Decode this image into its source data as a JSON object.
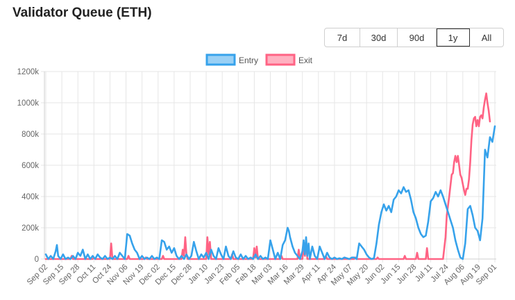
{
  "title": "Validator Queue (ETH)",
  "range_buttons": [
    {
      "label": "7d",
      "active": false
    },
    {
      "label": "30d",
      "active": false
    },
    {
      "label": "90d",
      "active": false
    },
    {
      "label": "1y",
      "active": true
    },
    {
      "label": "All",
      "active": false
    }
  ],
  "chart_data": {
    "type": "line",
    "title": "",
    "xlabel": "",
    "ylabel": "",
    "ylim": [
      0,
      1200000
    ],
    "y_ticks": [
      0,
      200000,
      400000,
      600000,
      800000,
      1000000,
      1200000
    ],
    "y_tick_labels": [
      "0",
      "200k",
      "400k",
      "600k",
      "800k",
      "1000k",
      "1200k"
    ],
    "x_tick_labels": [
      "Sep 02",
      "Sep 15",
      "Sep 28",
      "Oct 11",
      "Oct 24",
      "Nov 06",
      "Nov 19",
      "Dec 02",
      "Dec 15",
      "Dec 28",
      "Jan 10",
      "Jan 23",
      "Feb 05",
      "Feb 18",
      "Mar 03",
      "Mar 16",
      "Mar 29",
      "Apr 11",
      "Apr 24",
      "May 07",
      "May 20",
      "Jun 02",
      "Jun 15",
      "Jun 28",
      "Jul 11",
      "Jul 24",
      "Aug 06",
      "Aug 19",
      "Sep 01"
    ],
    "grid": true,
    "legend": "top-center",
    "series": [
      {
        "name": "Entry",
        "color": "#36a2eb",
        "fill": "#9ad0f5",
        "points": [
          [
            0,
            30000
          ],
          [
            2,
            0
          ],
          [
            4,
            20000
          ],
          [
            6,
            0
          ],
          [
            8,
            50000
          ],
          [
            9,
            90000
          ],
          [
            10,
            20000
          ],
          [
            12,
            0
          ],
          [
            14,
            30000
          ],
          [
            16,
            0
          ],
          [
            18,
            10000
          ],
          [
            20,
            0
          ],
          [
            22,
            20000
          ],
          [
            24,
            0
          ],
          [
            26,
            40000
          ],
          [
            28,
            20000
          ],
          [
            30,
            60000
          ],
          [
            32,
            0
          ],
          [
            34,
            30000
          ],
          [
            36,
            0
          ],
          [
            38,
            20000
          ],
          [
            40,
            0
          ],
          [
            42,
            30000
          ],
          [
            44,
            10000
          ],
          [
            46,
            0
          ],
          [
            48,
            20000
          ],
          [
            50,
            0
          ],
          [
            52,
            10000
          ],
          [
            54,
            0
          ],
          [
            56,
            20000
          ],
          [
            58,
            0
          ],
          [
            60,
            40000
          ],
          [
            62,
            20000
          ],
          [
            64,
            0
          ],
          [
            66,
            160000
          ],
          [
            68,
            150000
          ],
          [
            70,
            100000
          ],
          [
            72,
            60000
          ],
          [
            74,
            40000
          ],
          [
            76,
            0
          ],
          [
            78,
            20000
          ],
          [
            80,
            0
          ],
          [
            82,
            10000
          ],
          [
            84,
            0
          ],
          [
            86,
            20000
          ],
          [
            88,
            0
          ],
          [
            90,
            10000
          ],
          [
            92,
            0
          ],
          [
            94,
            120000
          ],
          [
            96,
            110000
          ],
          [
            98,
            60000
          ],
          [
            100,
            80000
          ],
          [
            102,
            40000
          ],
          [
            104,
            70000
          ],
          [
            106,
            20000
          ],
          [
            108,
            0
          ],
          [
            110,
            20000
          ],
          [
            112,
            0
          ],
          [
            114,
            30000
          ],
          [
            116,
            0
          ],
          [
            118,
            20000
          ],
          [
            120,
            110000
          ],
          [
            122,
            50000
          ],
          [
            124,
            0
          ],
          [
            126,
            30000
          ],
          [
            128,
            10000
          ],
          [
            130,
            40000
          ],
          [
            132,
            0
          ],
          [
            134,
            60000
          ],
          [
            136,
            20000
          ],
          [
            138,
            0
          ],
          [
            140,
            70000
          ],
          [
            142,
            30000
          ],
          [
            144,
            0
          ],
          [
            146,
            80000
          ],
          [
            148,
            20000
          ],
          [
            150,
            0
          ],
          [
            152,
            50000
          ],
          [
            154,
            10000
          ],
          [
            156,
            0
          ],
          [
            158,
            30000
          ],
          [
            160,
            0
          ],
          [
            162,
            20000
          ],
          [
            164,
            0
          ],
          [
            166,
            10000
          ],
          [
            168,
            0
          ],
          [
            170,
            30000
          ],
          [
            172,
            0
          ],
          [
            174,
            20000
          ],
          [
            176,
            0
          ],
          [
            178,
            10000
          ],
          [
            180,
            0
          ],
          [
            182,
            120000
          ],
          [
            184,
            60000
          ],
          [
            186,
            0
          ],
          [
            188,
            40000
          ],
          [
            190,
            0
          ],
          [
            192,
            90000
          ],
          [
            194,
            120000
          ],
          [
            196,
            200000
          ],
          [
            197,
            180000
          ],
          [
            198,
            140000
          ],
          [
            200,
            80000
          ],
          [
            202,
            40000
          ],
          [
            204,
            20000
          ],
          [
            206,
            0
          ],
          [
            208,
            50000
          ],
          [
            209,
            120000
          ],
          [
            210,
            30000
          ],
          [
            211,
            140000
          ],
          [
            212,
            20000
          ],
          [
            213,
            100000
          ],
          [
            214,
            0
          ],
          [
            216,
            80000
          ],
          [
            218,
            20000
          ],
          [
            220,
            0
          ],
          [
            222,
            80000
          ],
          [
            224,
            40000
          ],
          [
            226,
            0
          ],
          [
            228,
            40000
          ],
          [
            230,
            10000
          ],
          [
            232,
            0
          ],
          [
            234,
            10000
          ],
          [
            236,
            0
          ],
          [
            238,
            5000
          ],
          [
            240,
            0
          ],
          [
            242,
            10000
          ],
          [
            244,
            5000
          ],
          [
            246,
            0
          ],
          [
            248,
            10000
          ],
          [
            250,
            10000
          ],
          [
            252,
            0
          ],
          [
            254,
            100000
          ],
          [
            256,
            80000
          ],
          [
            258,
            60000
          ],
          [
            260,
            30000
          ],
          [
            262,
            10000
          ],
          [
            264,
            0
          ],
          [
            266,
            5000
          ],
          [
            268,
            100000
          ],
          [
            270,
            220000
          ],
          [
            272,
            300000
          ],
          [
            274,
            350000
          ],
          [
            276,
            310000
          ],
          [
            278,
            340000
          ],
          [
            280,
            300000
          ],
          [
            282,
            380000
          ],
          [
            284,
            400000
          ],
          [
            286,
            440000
          ],
          [
            288,
            420000
          ],
          [
            290,
            460000
          ],
          [
            292,
            430000
          ],
          [
            294,
            440000
          ],
          [
            296,
            380000
          ],
          [
            298,
            300000
          ],
          [
            300,
            260000
          ],
          [
            302,
            200000
          ],
          [
            304,
            160000
          ],
          [
            306,
            140000
          ],
          [
            308,
            150000
          ],
          [
            310,
            240000
          ],
          [
            312,
            370000
          ],
          [
            314,
            390000
          ],
          [
            316,
            430000
          ],
          [
            318,
            400000
          ],
          [
            320,
            440000
          ],
          [
            322,
            400000
          ],
          [
            324,
            350000
          ],
          [
            326,
            300000
          ],
          [
            328,
            250000
          ],
          [
            330,
            200000
          ],
          [
            332,
            120000
          ],
          [
            334,
            60000
          ],
          [
            336,
            10000
          ],
          [
            338,
            0
          ],
          [
            340,
            100000
          ],
          [
            342,
            320000
          ],
          [
            344,
            340000
          ],
          [
            346,
            280000
          ],
          [
            348,
            200000
          ],
          [
            350,
            180000
          ],
          [
            352,
            120000
          ],
          [
            354,
            260000
          ],
          [
            356,
            700000
          ],
          [
            358,
            650000
          ],
          [
            360,
            780000
          ],
          [
            362,
            750000
          ],
          [
            364,
            850000
          ]
        ]
      },
      {
        "name": "Exit",
        "color": "#ff6384",
        "fill": "#ffb1c1",
        "points": [
          [
            0,
            0
          ],
          [
            20,
            0
          ],
          [
            21,
            20000
          ],
          [
            22,
            0
          ],
          [
            38,
            0
          ],
          [
            39,
            10000
          ],
          [
            40,
            0
          ],
          [
            52,
            0
          ],
          [
            53,
            100000
          ],
          [
            54,
            0
          ],
          [
            66,
            0
          ],
          [
            67,
            20000
          ],
          [
            68,
            0
          ],
          [
            80,
            0
          ],
          [
            81,
            10000
          ],
          [
            82,
            0
          ],
          [
            94,
            0
          ],
          [
            95,
            20000
          ],
          [
            96,
            0
          ],
          [
            110,
            0
          ],
          [
            111,
            60000
          ],
          [
            112,
            20000
          ],
          [
            113,
            140000
          ],
          [
            114,
            30000
          ],
          [
            115,
            0
          ],
          [
            130,
            0
          ],
          [
            131,
            140000
          ],
          [
            132,
            30000
          ],
          [
            133,
            110000
          ],
          [
            134,
            0
          ],
          [
            150,
            0
          ],
          [
            151,
            30000
          ],
          [
            152,
            0
          ],
          [
            168,
            0
          ],
          [
            169,
            70000
          ],
          [
            170,
            10000
          ],
          [
            171,
            80000
          ],
          [
            172,
            0
          ],
          [
            190,
            0
          ],
          [
            191,
            20000
          ],
          [
            192,
            0
          ],
          [
            204,
            0
          ],
          [
            205,
            60000
          ],
          [
            206,
            0
          ],
          [
            208,
            0
          ],
          [
            209,
            80000
          ],
          [
            210,
            20000
          ],
          [
            211,
            120000
          ],
          [
            212,
            0
          ],
          [
            226,
            0
          ],
          [
            227,
            20000
          ],
          [
            228,
            0
          ],
          [
            250,
            0
          ],
          [
            251,
            10000
          ],
          [
            252,
            0
          ],
          [
            268,
            0
          ],
          [
            269,
            10000
          ],
          [
            270,
            0
          ],
          [
            290,
            0
          ],
          [
            291,
            20000
          ],
          [
            292,
            0
          ],
          [
            300,
            0
          ],
          [
            301,
            40000
          ],
          [
            302,
            0
          ],
          [
            308,
            0
          ],
          [
            309,
            70000
          ],
          [
            310,
            0
          ],
          [
            322,
            0
          ],
          [
            324,
            140000
          ],
          [
            325,
            280000
          ],
          [
            327,
            400000
          ],
          [
            329,
            540000
          ],
          [
            330,
            550000
          ],
          [
            331,
            620000
          ],
          [
            332,
            660000
          ],
          [
            333,
            620000
          ],
          [
            334,
            660000
          ],
          [
            335,
            600000
          ],
          [
            336,
            540000
          ],
          [
            337,
            520000
          ],
          [
            338,
            480000
          ],
          [
            339,
            440000
          ],
          [
            340,
            410000
          ],
          [
            341,
            450000
          ],
          [
            342,
            450000
          ],
          [
            343,
            510000
          ],
          [
            344,
            620000
          ],
          [
            345,
            760000
          ],
          [
            346,
            860000
          ],
          [
            347,
            900000
          ],
          [
            348,
            910000
          ],
          [
            349,
            850000
          ],
          [
            350,
            890000
          ],
          [
            351,
            850000
          ],
          [
            352,
            910000
          ],
          [
            353,
            920000
          ],
          [
            354,
            900000
          ],
          [
            355,
            970000
          ],
          [
            356,
            1020000
          ],
          [
            357,
            1060000
          ],
          [
            358,
            1000000
          ],
          [
            359,
            950000
          ],
          [
            360,
            880000
          ]
        ]
      }
    ]
  }
}
